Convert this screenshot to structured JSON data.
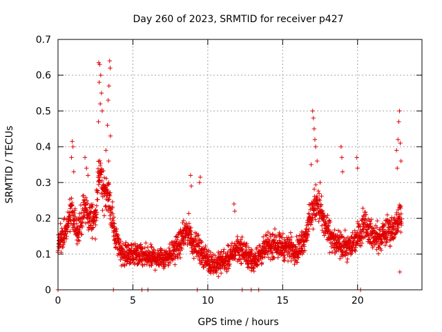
{
  "chart_data": {
    "type": "scatter",
    "title": "Day 260 of 2023, SRMTID for receiver p427",
    "xlabel": "GPS time / hours",
    "ylabel": "SRMTID / TECUs",
    "xlim": [
      0,
      24.3
    ],
    "ylim": [
      0,
      0.7
    ],
    "x_ticks": [
      0,
      5,
      10,
      15,
      20
    ],
    "x_tick_labels": [
      "0",
      "5",
      "10",
      "15",
      "20"
    ],
    "y_ticks": [
      0,
      0.1,
      0.2,
      0.3,
      0.4,
      0.5,
      0.6,
      0.7
    ],
    "y_tick_labels": [
      "0",
      "0.1",
      "0.2",
      "0.3",
      "0.4",
      "0.5",
      "0.6",
      "0.7"
    ],
    "grid": true,
    "marker": "plus",
    "color": "#e00000",
    "profile": {
      "x": [
        0,
        0.5,
        0.9,
        1.0,
        1.3,
        1.6,
        1.8,
        2.1,
        2.5,
        2.75,
        3.0,
        3.3,
        3.6,
        3.9,
        4.3,
        5.0,
        6.0,
        7.0,
        7.5,
        8.0,
        8.7,
        9.0,
        9.5,
        10.0,
        10.5,
        11.0,
        11.5,
        12.0,
        12.5,
        13.0,
        13.5,
        14.0,
        14.5,
        15.0,
        15.5,
        16.0,
        16.5,
        17.0,
        17.3,
        17.8,
        18.5,
        19.0,
        19.5,
        20.0,
        20.5,
        21.0,
        21.5,
        22.0,
        22.5,
        22.8
      ],
      "y": [
        0.13,
        0.16,
        0.22,
        0.19,
        0.17,
        0.2,
        0.23,
        0.2,
        0.2,
        0.34,
        0.27,
        0.28,
        0.2,
        0.14,
        0.1,
        0.1,
        0.09,
        0.09,
        0.1,
        0.12,
        0.17,
        0.13,
        0.11,
        0.08,
        0.07,
        0.08,
        0.09,
        0.12,
        0.1,
        0.08,
        0.1,
        0.12,
        0.13,
        0.12,
        0.12,
        0.11,
        0.15,
        0.22,
        0.25,
        0.18,
        0.13,
        0.12,
        0.12,
        0.15,
        0.19,
        0.15,
        0.14,
        0.17,
        0.17,
        0.2
      ],
      "spread": 0.04,
      "points_per_hour": 100,
      "x_start": 0.0,
      "x_end": 22.95
    },
    "peak_points": [
      {
        "x": 2.72,
        "y": 0.635
      },
      {
        "x": 2.78,
        "y": 0.63
      },
      {
        "x": 2.85,
        "y": 0.6
      },
      {
        "x": 2.75,
        "y": 0.58
      },
      {
        "x": 2.9,
        "y": 0.55
      },
      {
        "x": 2.82,
        "y": 0.52
      },
      {
        "x": 2.95,
        "y": 0.5
      },
      {
        "x": 2.7,
        "y": 0.47
      },
      {
        "x": 3.45,
        "y": 0.64
      },
      {
        "x": 3.48,
        "y": 0.62
      },
      {
        "x": 3.4,
        "y": 0.57
      },
      {
        "x": 3.35,
        "y": 0.53
      },
      {
        "x": 3.3,
        "y": 0.46
      },
      {
        "x": 3.5,
        "y": 0.43
      },
      {
        "x": 3.2,
        "y": 0.39
      },
      {
        "x": 3.38,
        "y": 0.36
      },
      {
        "x": 0.95,
        "y": 0.415
      },
      {
        "x": 1.0,
        "y": 0.4
      },
      {
        "x": 0.9,
        "y": 0.37
      },
      {
        "x": 1.05,
        "y": 0.33
      },
      {
        "x": 1.8,
        "y": 0.37
      },
      {
        "x": 1.9,
        "y": 0.34
      },
      {
        "x": 2.0,
        "y": 0.32
      },
      {
        "x": 8.85,
        "y": 0.32
      },
      {
        "x": 8.9,
        "y": 0.29
      },
      {
        "x": 9.5,
        "y": 0.315
      },
      {
        "x": 9.45,
        "y": 0.3
      },
      {
        "x": 11.75,
        "y": 0.24
      },
      {
        "x": 11.8,
        "y": 0.22
      },
      {
        "x": 17.0,
        "y": 0.5
      },
      {
        "x": 17.05,
        "y": 0.48
      },
      {
        "x": 17.1,
        "y": 0.45
      },
      {
        "x": 17.15,
        "y": 0.42
      },
      {
        "x": 17.2,
        "y": 0.4
      },
      {
        "x": 16.9,
        "y": 0.35
      },
      {
        "x": 17.3,
        "y": 0.36
      },
      {
        "x": 17.5,
        "y": 0.3
      },
      {
        "x": 18.9,
        "y": 0.4
      },
      {
        "x": 18.95,
        "y": 0.37
      },
      {
        "x": 19.0,
        "y": 0.33
      },
      {
        "x": 19.95,
        "y": 0.37
      },
      {
        "x": 20.0,
        "y": 0.34
      },
      {
        "x": 22.8,
        "y": 0.5
      },
      {
        "x": 22.75,
        "y": 0.47
      },
      {
        "x": 22.7,
        "y": 0.42
      },
      {
        "x": 22.85,
        "y": 0.41
      },
      {
        "x": 22.6,
        "y": 0.39
      },
      {
        "x": 22.9,
        "y": 0.36
      },
      {
        "x": 22.65,
        "y": 0.34
      },
      {
        "x": 22.82,
        "y": 0.05
      }
    ],
    "zero_points": [
      0.0,
      3.7,
      5.6,
      6.0,
      9.3,
      12.3,
      12.9,
      13.4,
      20.2
    ]
  }
}
